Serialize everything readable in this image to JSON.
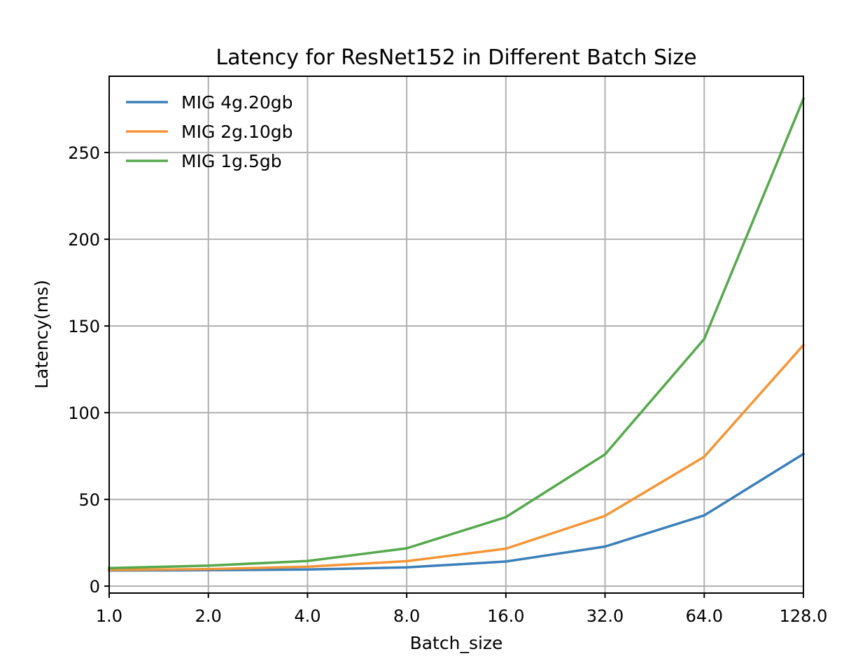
{
  "chart_data": {
    "type": "line",
    "title": "Latency for ResNet152 in Different Batch Size",
    "xlabel": "Batch_size",
    "ylabel": "Latency(ms)",
    "x": [
      1.0,
      2.0,
      4.0,
      8.0,
      16.0,
      32.0,
      64.0,
      128.0
    ],
    "x_tick_labels": [
      "1.0",
      "2.0",
      "4.0",
      "8.0",
      "16.0",
      "32.0",
      "64.0",
      "128.0"
    ],
    "x_scale": "log2",
    "y_ticks": [
      0,
      50,
      100,
      150,
      200,
      250
    ],
    "y_tick_labels": [
      "0",
      "50",
      "100",
      "150",
      "200",
      "250"
    ],
    "ylim": [
      -4,
      294
    ],
    "grid": true,
    "legend_position": "upper-left",
    "series": [
      {
        "name": "MIG 4g.20gb",
        "color": "#3a7fb8",
        "values": [
          9.0,
          9.2,
          9.6,
          10.8,
          14.2,
          22.8,
          40.8,
          76.2
        ]
      },
      {
        "name": "MIG 2g.10gb",
        "color": "#f39536",
        "values": [
          9.3,
          9.8,
          11.2,
          14.4,
          21.6,
          40.5,
          74.6,
          139.0
        ]
      },
      {
        "name": "MIG 1g.5gb",
        "color": "#56a84c",
        "values": [
          10.4,
          11.8,
          14.5,
          21.8,
          39.8,
          76.0,
          142.5,
          281.0
        ]
      }
    ]
  }
}
